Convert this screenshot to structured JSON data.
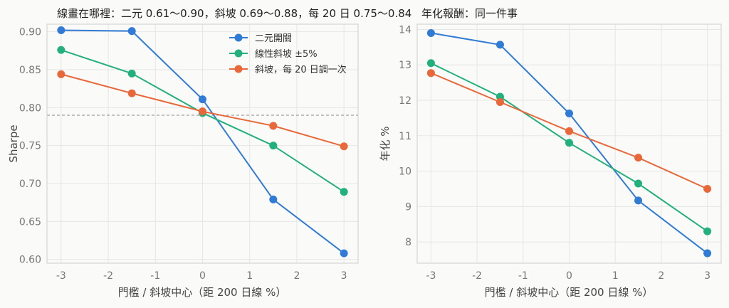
{
  "chart_data": [
    {
      "type": "line",
      "title": "線畫在哪裡：二元 0.61～0.90，斜坡 0.69～0.88，每 20 日 0.75～0.84",
      "xlabel": "門檻 / 斜坡中心（距 200 日線 %）",
      "ylabel": "Sharpe",
      "x": [
        -3,
        -1.5,
        0,
        1.5,
        3
      ],
      "xticks": [
        "-3",
        "-2",
        "-1",
        "0",
        "1",
        "2",
        "3"
      ],
      "xtick_values": [
        -3,
        -2,
        -1,
        0,
        1,
        2,
        3
      ],
      "yticks": [
        "0.60",
        "0.65",
        "0.70",
        "0.75",
        "0.80",
        "0.85",
        "0.90"
      ],
      "ytick_values": [
        0.6,
        0.65,
        0.7,
        0.75,
        0.8,
        0.85,
        0.9
      ],
      "xlim": [
        -3.3,
        3.3
      ],
      "ylim": [
        0.595,
        0.91
      ],
      "reference_line": 0.79,
      "grid": true,
      "legend_placement": "top-center",
      "series": [
        {
          "name": "二元開關",
          "color": "#2f7bd6",
          "values": [
            0.902,
            0.901,
            0.811,
            0.679,
            0.608
          ]
        },
        {
          "name": "線性斜坡 ±5%",
          "color": "#22b07d",
          "values": [
            0.876,
            0.845,
            0.793,
            0.75,
            0.689
          ]
        },
        {
          "name": "斜坡，每 20 日調一次",
          "color": "#e8683a",
          "values": [
            0.844,
            0.819,
            0.795,
            0.776,
            0.749
          ]
        }
      ]
    },
    {
      "type": "line",
      "title": "年化報酬：同一件事",
      "xlabel": "門檻 / 斜坡中心（距 200 日線 %）",
      "ylabel": "年化 %",
      "x": [
        -3,
        -1.5,
        0,
        1.5,
        3
      ],
      "xticks": [
        "-3",
        "-2",
        "-1",
        "0",
        "1",
        "2",
        "3"
      ],
      "xtick_values": [
        -3,
        -2,
        -1,
        0,
        1,
        2,
        3
      ],
      "yticks": [
        "8",
        "9",
        "10",
        "11",
        "12",
        "13",
        "14"
      ],
      "ytick_values": [
        8,
        9,
        10,
        11,
        12,
        13,
        14
      ],
      "xlim": [
        -3.3,
        3.3
      ],
      "ylim": [
        7.4,
        14.15
      ],
      "grid": true,
      "series": [
        {
          "name": "二元開關",
          "color": "#2f7bd6",
          "values": [
            13.9,
            13.57,
            11.63,
            9.17,
            7.68
          ]
        },
        {
          "name": "線性斜坡 ±5%",
          "color": "#22b07d",
          "values": [
            13.05,
            12.1,
            10.8,
            9.65,
            8.3
          ]
        },
        {
          "name": "斜坡，每 20 日調一次",
          "color": "#e8683a",
          "values": [
            12.77,
            11.95,
            11.13,
            10.38,
            9.5
          ]
        }
      ]
    }
  ]
}
